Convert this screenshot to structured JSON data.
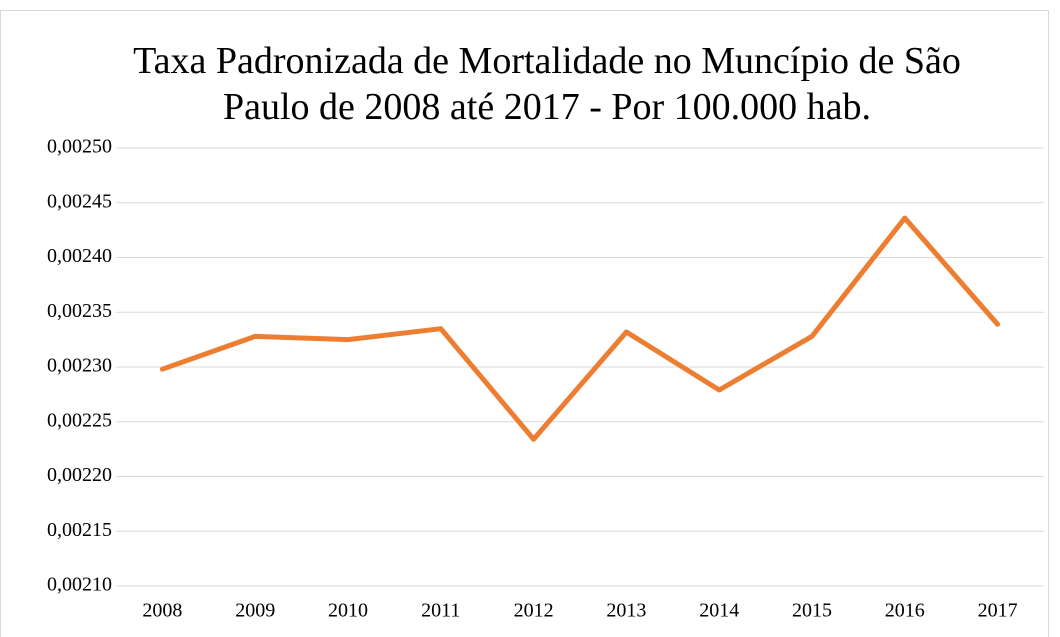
{
  "chart_data": {
    "type": "line",
    "title": "Taxa Padronizada de Mortalidade no Muncípio de São Paulo de 2008 até 2017 - Por 100.000 hab.",
    "categories": [
      "2008",
      "2009",
      "2010",
      "2011",
      "2012",
      "2013",
      "2014",
      "2015",
      "2016",
      "2017"
    ],
    "series": [
      {
        "color": "#ed7d31",
        "values": [
          0.002298,
          0.002328,
          0.002325,
          0.002335,
          0.002234,
          0.002332,
          0.002279,
          0.002328,
          0.002436,
          0.002339
        ]
      }
    ],
    "ylim": [
      0.0021,
      0.0025
    ],
    "yticks": [
      {
        "value": 0.0021,
        "label": "0,00210"
      },
      {
        "value": 0.00215,
        "label": "0,00215"
      },
      {
        "value": 0.0022,
        "label": "0,00220"
      },
      {
        "value": 0.00225,
        "label": "0,00225"
      },
      {
        "value": 0.0023,
        "label": "0,00230"
      },
      {
        "value": 0.00235,
        "label": "0,00235"
      },
      {
        "value": 0.0024,
        "label": "0,00240"
      },
      {
        "value": 0.00245,
        "label": "0,00245"
      },
      {
        "value": 0.0025,
        "label": "0,00250"
      }
    ],
    "grid": true
  }
}
